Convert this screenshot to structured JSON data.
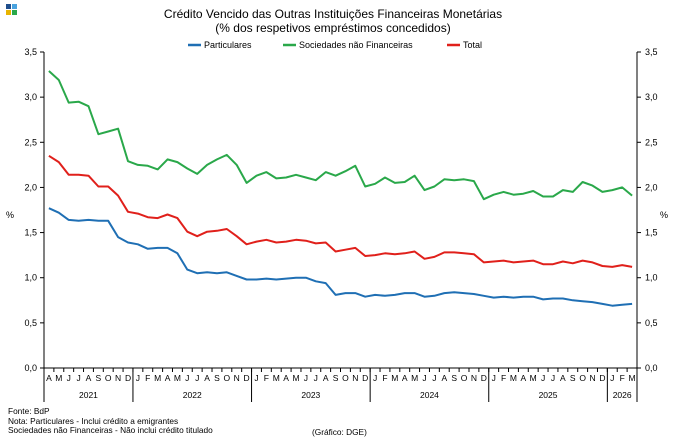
{
  "chart_data": {
    "type": "line",
    "title": "Crédito Vencido das Outras Instituições Financeiras Monetárias",
    "subtitle": "(% dos respetivos empréstimos concedidos)",
    "ylabel_left": "%",
    "ylabel_right": "%",
    "ylim": [
      0,
      3.5
    ],
    "yticks": [
      "0,0",
      "0,5",
      "1,0",
      "1,5",
      "2,0",
      "2,5",
      "3,0",
      "3,5"
    ],
    "month_labels": [
      "A",
      "M",
      "J",
      "J",
      "A",
      "S",
      "O",
      "N",
      "D",
      "J",
      "F",
      "M",
      "A",
      "M",
      "J",
      "J",
      "A",
      "S",
      "O",
      "N",
      "D",
      "J",
      "F",
      "M",
      "A",
      "M",
      "J",
      "J",
      "A",
      "S",
      "O",
      "N",
      "D",
      "J",
      "F",
      "M",
      "A",
      "M",
      "J",
      "J",
      "A",
      "S",
      "O",
      "N",
      "D",
      "J",
      "F",
      "M",
      "A",
      "M",
      "J",
      "J",
      "A",
      "S",
      "O",
      "N",
      "D",
      "J",
      "F",
      "M"
    ],
    "years": [
      {
        "label": "2021",
        "start": 0,
        "count": 9
      },
      {
        "label": "2022",
        "start": 9,
        "count": 12
      },
      {
        "label": "2023",
        "start": 21,
        "count": 12
      },
      {
        "label": "2024",
        "start": 33,
        "count": 12
      },
      {
        "label": "2025",
        "start": 45,
        "count": 12
      },
      {
        "label": "2026",
        "start": 57,
        "count": 3
      }
    ],
    "series": [
      {
        "name": "Particulares",
        "color": "#1f6fb4",
        "values": [
          1.77,
          1.72,
          1.64,
          1.63,
          1.64,
          1.63,
          1.63,
          1.45,
          1.39,
          1.37,
          1.32,
          1.33,
          1.33,
          1.27,
          1.09,
          1.05,
          1.06,
          1.05,
          1.06,
          1.02,
          0.98,
          0.98,
          0.99,
          0.98,
          0.99,
          1.0,
          1.0,
          0.96,
          0.94,
          0.81,
          0.83,
          0.83,
          0.79,
          0.81,
          0.8,
          0.81,
          0.83,
          0.83,
          0.79,
          0.8,
          0.83,
          0.84,
          0.83,
          0.82,
          0.8,
          0.78,
          0.79,
          0.78,
          0.79,
          0.79,
          0.76,
          0.77,
          0.77,
          0.75,
          0.74,
          0.73,
          0.71,
          0.69,
          0.7,
          0.71
        ]
      },
      {
        "name": "Sociedades não Financeiras",
        "color": "#2aa84a",
        "values": [
          3.29,
          3.19,
          2.94,
          2.95,
          2.9,
          2.59,
          2.62,
          2.65,
          2.29,
          2.25,
          2.24,
          2.2,
          2.31,
          2.28,
          2.21,
          2.15,
          2.25,
          2.31,
          2.36,
          2.25,
          2.05,
          2.13,
          2.17,
          2.1,
          2.11,
          2.14,
          2.11,
          2.08,
          2.17,
          2.13,
          2.18,
          2.24,
          2.01,
          2.04,
          2.11,
          2.05,
          2.06,
          2.13,
          1.97,
          2.01,
          2.09,
          2.08,
          2.09,
          2.07,
          1.87,
          1.92,
          1.95,
          1.92,
          1.93,
          1.96,
          1.9,
          1.9,
          1.97,
          1.95,
          2.06,
          2.02,
          1.95,
          1.97,
          2.0,
          1.91
        ]
      },
      {
        "name": "Total",
        "color": "#e0201b",
        "values": [
          2.35,
          2.28,
          2.14,
          2.14,
          2.13,
          2.01,
          2.01,
          1.91,
          1.73,
          1.71,
          1.67,
          1.66,
          1.7,
          1.66,
          1.51,
          1.46,
          1.51,
          1.52,
          1.54,
          1.46,
          1.37,
          1.4,
          1.42,
          1.39,
          1.4,
          1.42,
          1.41,
          1.38,
          1.39,
          1.29,
          1.31,
          1.33,
          1.24,
          1.25,
          1.27,
          1.26,
          1.27,
          1.29,
          1.21,
          1.23,
          1.28,
          1.28,
          1.27,
          1.26,
          1.17,
          1.18,
          1.19,
          1.17,
          1.18,
          1.19,
          1.15,
          1.15,
          1.18,
          1.16,
          1.19,
          1.17,
          1.13,
          1.12,
          1.14,
          1.12
        ]
      }
    ]
  },
  "notes": {
    "source": "Fonte: BdP",
    "note1": "Nota: Particulares - Inclui crédito a emigrantes",
    "note2": "Sociedades não Financeiras - Não inclui crédito titulado",
    "credit": "(Gráfico: DGE)"
  },
  "logo_colors": [
    "#1f4e8c",
    "#4aa3df",
    "#e8b400",
    "#2aa84a"
  ]
}
